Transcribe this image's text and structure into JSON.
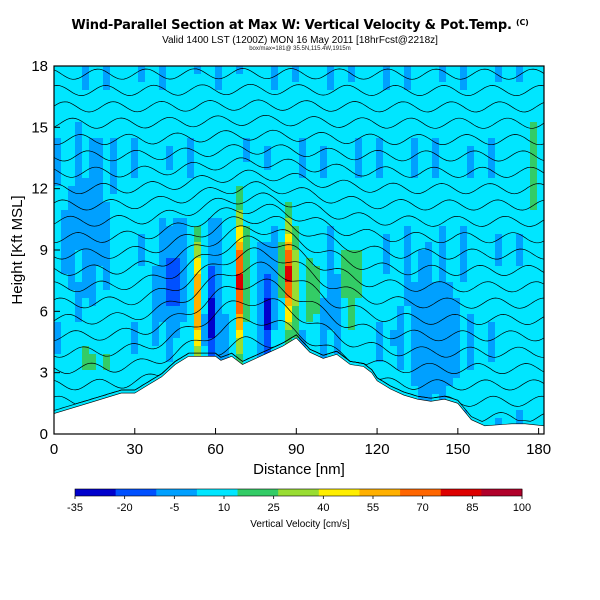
{
  "header": {
    "title": "Wind-Parallel Section at Max W: Vertical Velocity & Pot.Temp.",
    "title_mark": "(C)",
    "subtitle": "Valid 1400 LST (1200Z) MON 16 May 2011 [18hrFcst@2218z]",
    "subtitle2": "box/max=181@ 35.5N,115.4W,1915m"
  },
  "chart_data": {
    "type": "heatmap",
    "title": "Wind-Parallel Section at Max W: Vertical Velocity & Pot.Temp.",
    "xlabel": "Distance [nm]",
    "ylabel": "Height [Kft MSL]",
    "xlim": [
      0,
      182
    ],
    "ylim": [
      0,
      18
    ],
    "xticks": [
      0,
      30,
      60,
      90,
      120,
      150,
      180
    ],
    "yticks": [
      0,
      3,
      6,
      9,
      12,
      15,
      18
    ],
    "grid": false,
    "colorbar": {
      "label": "Vertical Velocity [cm/s]",
      "ticks": [
        -35,
        -20,
        -5,
        10,
        25,
        40,
        55,
        70,
        85,
        100
      ],
      "range": [
        -35,
        100
      ],
      "colors": [
        "#0000cc",
        "#0050ff",
        "#00a0ff",
        "#00e6ff",
        "#33cc66",
        "#99dd33",
        "#ffee00",
        "#ffb000",
        "#ff6600",
        "#dd0000",
        "#b0002a"
      ]
    },
    "background_velocity": 4,
    "terrain_kft": [
      [
        0,
        1.0
      ],
      [
        15,
        1.6
      ],
      [
        20,
        1.8
      ],
      [
        25,
        2.0
      ],
      [
        30,
        2.0
      ],
      [
        35,
        2.4
      ],
      [
        40,
        2.8
      ],
      [
        45,
        3.4
      ],
      [
        50,
        3.8
      ],
      [
        60,
        3.8
      ],
      [
        62,
        3.6
      ],
      [
        66,
        3.8
      ],
      [
        70,
        3.4
      ],
      [
        75,
        3.7
      ],
      [
        80,
        4.0
      ],
      [
        85,
        4.3
      ],
      [
        90,
        4.7
      ],
      [
        95,
        4.0
      ],
      [
        100,
        3.7
      ],
      [
        105,
        3.9
      ],
      [
        110,
        3.4
      ],
      [
        115,
        3.3
      ],
      [
        118,
        3.0
      ],
      [
        120,
        2.6
      ],
      [
        125,
        2.2
      ],
      [
        130,
        1.9
      ],
      [
        135,
        1.7
      ],
      [
        140,
        1.6
      ],
      [
        145,
        1.7
      ],
      [
        150,
        1.5
      ],
      [
        155,
        0.7
      ],
      [
        160,
        0.4
      ],
      [
        170,
        0.5
      ],
      [
        175,
        0.5
      ],
      [
        182,
        0.4
      ]
    ],
    "features": [
      {
        "x": 53,
        "y": 6.5,
        "w": 60,
        "sx": 1.8,
        "sy": 3.0
      },
      {
        "x": 69.5,
        "y": 7.5,
        "w": 85,
        "sx": 1.6,
        "sy": 3.2
      },
      {
        "x": 87.5,
        "y": 7.8,
        "w": 75,
        "sx": 2.3,
        "sy": 2.5
      },
      {
        "x": 96,
        "y": 7.2,
        "w": 25,
        "sx": 2.0,
        "sy": 2.2
      },
      {
        "x": 110,
        "y": 7.5,
        "w": 20,
        "sx": 4.0,
        "sy": 2.5
      },
      {
        "x": 59,
        "y": 6.0,
        "w": -30,
        "sx": 2.5,
        "sy": 3.0
      },
      {
        "x": 44,
        "y": 7.5,
        "w": -22,
        "sx": 5.0,
        "sy": 2.0
      },
      {
        "x": 79,
        "y": 6.0,
        "w": -28,
        "sx": 2.3,
        "sy": 2.5
      },
      {
        "x": 104,
        "y": 6.8,
        "w": -14,
        "sx": 3.0,
        "sy": 2.0
      },
      {
        "x": 15,
        "y": 3.5,
        "w": 12,
        "sx": 8.0,
        "sy": 1.5
      },
      {
        "x": 178,
        "y": 13.0,
        "w": 12,
        "sx": 3.0,
        "sy": 5.0
      },
      {
        "x": 140,
        "y": 5.0,
        "w": -8,
        "sx": 10.0,
        "sy": 3.0
      },
      {
        "x": 12,
        "y": 10.0,
        "w": -6,
        "sx": 8.0,
        "sy": 4.0
      }
    ],
    "theta_contours_kft": [
      0.8,
      1.6,
      2.4,
      3.2,
      4.0,
      4.8,
      5.6,
      6.4,
      7.2,
      8.0,
      8.8,
      9.6,
      10.4,
      11.2,
      12.0,
      12.8,
      13.6,
      14.4,
      15.2,
      16.0,
      16.8,
      17.6
    ]
  }
}
